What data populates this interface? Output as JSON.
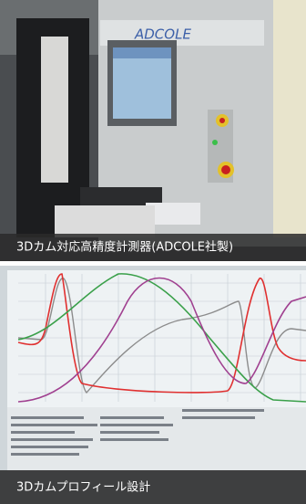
{
  "photos": [
    {
      "caption": "3Dカム対応高精度計測器(ADCOLE社製)",
      "sign": "ADCOLE"
    },
    {
      "caption": "3Dカムプロフィール設計"
    }
  ]
}
